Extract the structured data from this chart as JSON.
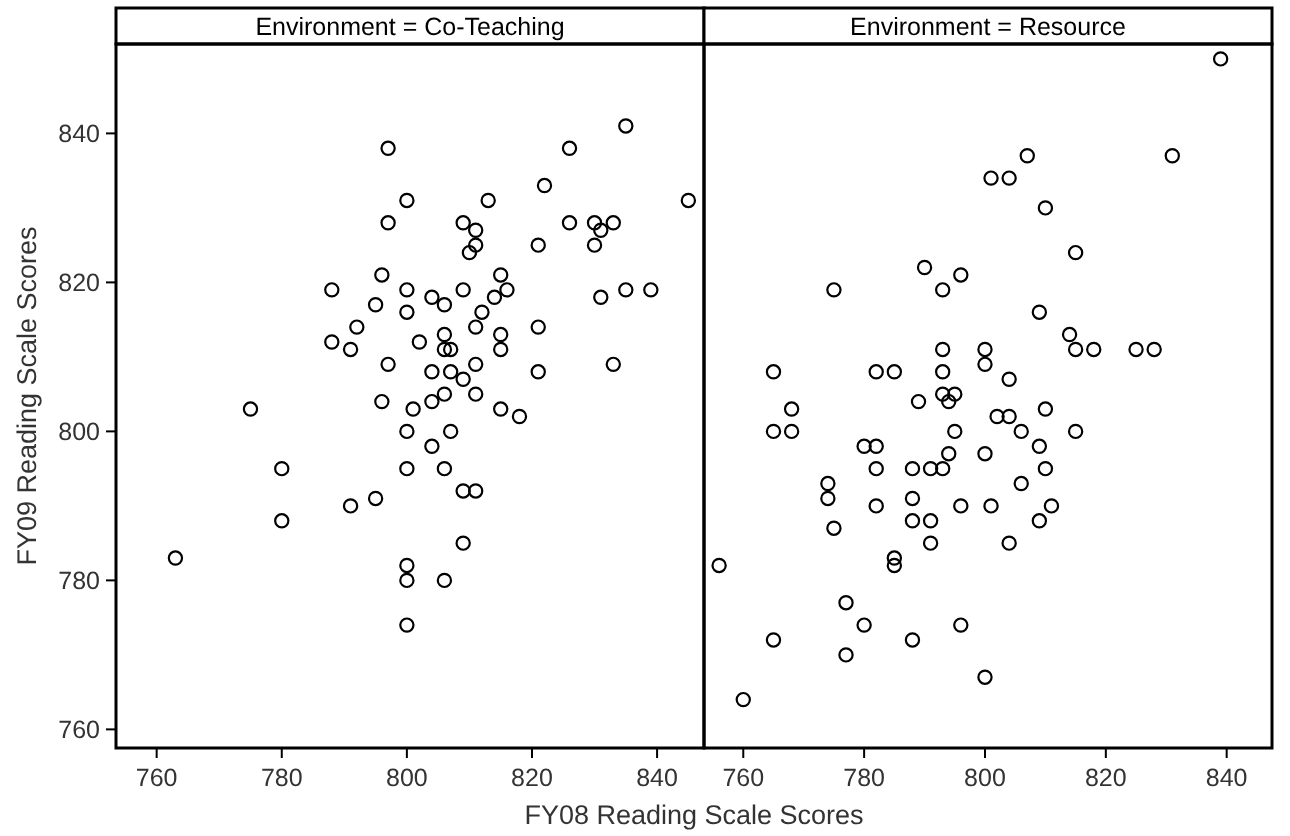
{
  "chart_data": [
    {
      "type": "scatter",
      "title": "Environment = Co-Teaching",
      "xlabel": "FY08 Reading Scale Scores",
      "ylabel": "FY09 Reading Scale Scores",
      "xlim": [
        753.5,
        847.5
      ],
      "ylim": [
        757.5,
        852
      ],
      "xticks": [
        760,
        780,
        800,
        820,
        840
      ],
      "yticks": [
        760,
        780,
        800,
        820,
        840
      ],
      "marker": "circle",
      "grid": false,
      "series": [
        {
          "color": "#000000",
          "x": [
            835,
            797,
            826,
            822,
            800,
            813,
            845,
            797,
            809,
            811,
            826,
            830,
            831,
            833,
            811,
            810,
            821,
            830,
            796,
            788,
            800,
            809,
            815,
            816,
            814,
            795,
            804,
            806,
            800,
            831,
            835,
            839,
            812,
            792,
            811,
            821,
            788,
            791,
            802,
            806,
            815,
            806,
            807,
            815,
            797,
            811,
            833,
            804,
            807,
            809,
            821,
            796,
            804,
            806,
            811,
            775,
            801,
            815,
            818,
            800,
            807,
            804,
            780,
            800,
            806,
            791,
            795,
            809,
            811,
            780,
            809,
            763,
            800,
            800,
            806,
            800
          ],
          "values": [
            841,
            838,
            838,
            833,
            831,
            831,
            831,
            828,
            828,
            827,
            828,
            828,
            827,
            828,
            825,
            824,
            825,
            825,
            821,
            819,
            819,
            819,
            821,
            819,
            818,
            817,
            818,
            817,
            816,
            818,
            819,
            819,
            816,
            814,
            814,
            814,
            812,
            811,
            812,
            813,
            813,
            811,
            811,
            811,
            809,
            809,
            809,
            808,
            808,
            807,
            808,
            804,
            804,
            805,
            805,
            803,
            803,
            803,
            802,
            800,
            800,
            798,
            795,
            795,
            795,
            790,
            791,
            792,
            792,
            788,
            785,
            783,
            782,
            780,
            780,
            774
          ]
        }
      ]
    },
    {
      "type": "scatter",
      "title": "Environment = Resource",
      "xlim": [
        753.5,
        847.5
      ],
      "ylim": [
        757.5,
        852
      ],
      "xticks": [
        760,
        780,
        800,
        820,
        840
      ],
      "yticks": [
        760,
        780,
        800,
        820,
        840
      ],
      "tick_labels": "x",
      "marker": "circle",
      "grid": false,
      "series": [
        {
          "color": "#000000",
          "x": [
            839,
            831,
            807,
            801,
            804,
            810,
            815,
            790,
            796,
            775,
            793,
            809,
            814,
            793,
            800,
            815,
            818,
            825,
            828,
            765,
            782,
            785,
            793,
            800,
            804,
            793,
            795,
            794,
            789,
            768,
            810,
            802,
            804,
            765,
            768,
            795,
            806,
            815,
            780,
            782,
            794,
            800,
            809,
            782,
            788,
            791,
            793,
            810,
            774,
            806,
            774,
            788,
            782,
            796,
            801,
            811,
            788,
            791,
            809,
            775,
            791,
            804,
            785,
            785,
            756,
            777,
            780,
            796,
            765,
            788,
            777,
            800,
            760
          ],
          "values": [
            850,
            837,
            837,
            834,
            834,
            830,
            824,
            822,
            821,
            819,
            819,
            816,
            813,
            811,
            811,
            811,
            811,
            811,
            811,
            808,
            808,
            808,
            808,
            809,
            807,
            805,
            805,
            804,
            804,
            803,
            803,
            802,
            802,
            800,
            800,
            800,
            800,
            800,
            798,
            798,
            797,
            797,
            798,
            795,
            795,
            795,
            795,
            795,
            793,
            793,
            791,
            791,
            790,
            790,
            790,
            790,
            788,
            788,
            788,
            787,
            785,
            785,
            783,
            782,
            782,
            777,
            774,
            774,
            772,
            772,
            770,
            767,
            764
          ]
        }
      ]
    }
  ]
}
